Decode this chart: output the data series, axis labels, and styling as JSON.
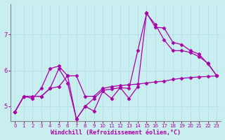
{
  "background_color": "#c8eef0",
  "grid_color": "#b0dde0",
  "line_color": "#aa00aa",
  "marker": "D",
  "markersize": 2.5,
  "linewidth": 0.9,
  "xlabel": "Windchill (Refroidissement éolien,°C)",
  "xlabel_fontsize": 6,
  "xtick_fontsize": 5,
  "ytick_fontsize": 6,
  "ylim": [
    4.6,
    7.85
  ],
  "xlim": [
    -0.5,
    23.5
  ],
  "yticks": [
    5,
    6,
    7
  ],
  "xticks": [
    0,
    1,
    2,
    3,
    4,
    5,
    6,
    7,
    8,
    9,
    10,
    11,
    12,
    13,
    14,
    15,
    16,
    17,
    18,
    19,
    20,
    21,
    22,
    23
  ],
  "series": [
    [
      4.85,
      5.28,
      5.28,
      5.28,
      5.5,
      5.55,
      5.85,
      5.85,
      5.28,
      5.28,
      5.5,
      5.55,
      5.58,
      5.6,
      5.62,
      5.65,
      5.68,
      5.7,
      5.75,
      5.78,
      5.8,
      5.82,
      5.83,
      5.85
    ],
    [
      4.85,
      5.28,
      5.28,
      5.28,
      5.5,
      6.05,
      5.65,
      4.65,
      5.0,
      5.22,
      5.45,
      5.48,
      5.52,
      5.5,
      6.55,
      7.58,
      7.28,
      6.85,
      6.55,
      6.55,
      6.5,
      6.38,
      6.2,
      5.85
    ],
    [
      4.85,
      5.28,
      5.22,
      5.5,
      6.05,
      6.12,
      5.85,
      4.65,
      5.0,
      4.87,
      5.42,
      5.22,
      5.52,
      5.22,
      5.55,
      7.6,
      7.2,
      7.18,
      6.78,
      6.72,
      6.55,
      6.45,
      6.18,
      5.85
    ]
  ]
}
